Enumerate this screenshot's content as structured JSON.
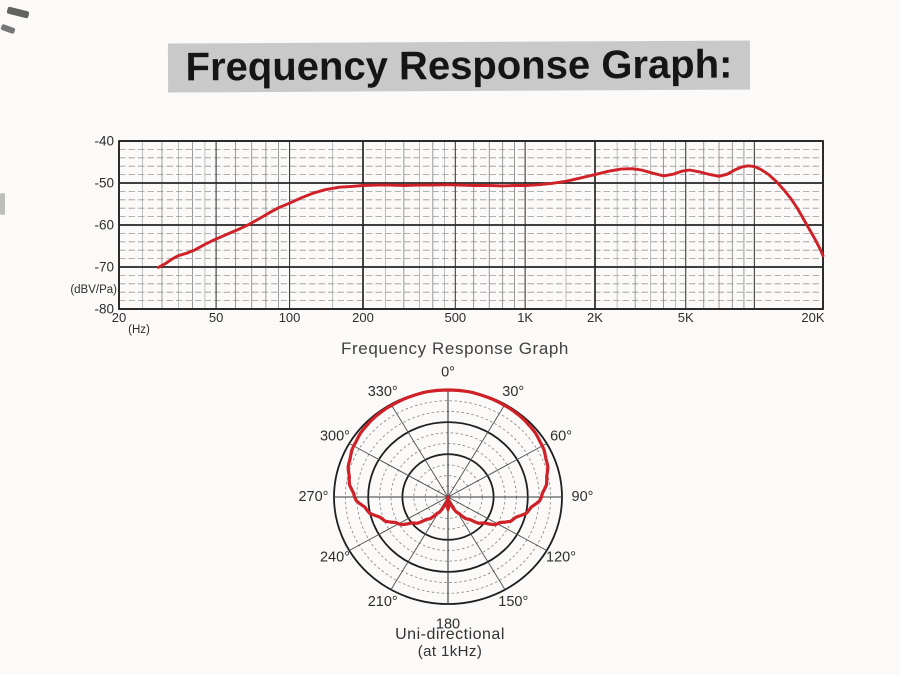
{
  "title": {
    "text": "Frequency Response Graph:"
  },
  "chart_data": [
    {
      "type": "line",
      "title": "Frequency Response Graph",
      "line_color": "#cf2127",
      "x_axis": {
        "scale": "log",
        "range": [
          20,
          20000
        ],
        "unit_label": "(Hz)",
        "ticks": [
          {
            "f": 20,
            "label": "20"
          },
          {
            "f": 50,
            "label": "50"
          },
          {
            "f": 100,
            "label": "100"
          },
          {
            "f": 200,
            "label": "200"
          },
          {
            "f": 500,
            "label": "500"
          },
          {
            "f": 1000,
            "label": "1K"
          },
          {
            "f": 2000,
            "label": "2K"
          },
          {
            "f": 5000,
            "label": "5K"
          },
          {
            "f": 20000,
            "label": "20K"
          }
        ],
        "grid": {
          "thick": [
            20,
            200,
            2000,
            20000
          ],
          "medium": [
            50,
            100,
            500,
            1000,
            5000,
            10000
          ],
          "thin": [
            30,
            40,
            60,
            70,
            80,
            90,
            300,
            400,
            600,
            700,
            800,
            900,
            3000,
            4000,
            6000,
            7000,
            8000,
            9000
          ],
          "hair": [
            25,
            35,
            45,
            150,
            250,
            350,
            450,
            1500,
            2500,
            3500,
            4500
          ]
        }
      },
      "y_axis": {
        "unit_label": "(dBV/Pa)",
        "range": [
          -80,
          -40
        ],
        "ticks": [
          -40,
          -50,
          -60,
          -70,
          -80
        ],
        "minor_step": 2
      },
      "points": [
        [
          29,
          -70.1
        ],
        [
          31,
          -69.2
        ],
        [
          33,
          -68.1
        ],
        [
          35,
          -67.3
        ],
        [
          38,
          -66.7
        ],
        [
          41,
          -65.9
        ],
        [
          44,
          -64.9
        ],
        [
          48,
          -63.8
        ],
        [
          52,
          -62.9
        ],
        [
          57,
          -61.9
        ],
        [
          62,
          -61.0
        ],
        [
          68,
          -59.9
        ],
        [
          75,
          -58.5
        ],
        [
          82,
          -57.2
        ],
        [
          90,
          -55.9
        ],
        [
          100,
          -54.8
        ],
        [
          112,
          -53.5
        ],
        [
          125,
          -52.4
        ],
        [
          140,
          -51.6
        ],
        [
          160,
          -51.0
        ],
        [
          180,
          -50.8
        ],
        [
          200,
          -50.6
        ],
        [
          230,
          -50.5
        ],
        [
          260,
          -50.5
        ],
        [
          300,
          -50.6
        ],
        [
          350,
          -50.5
        ],
        [
          400,
          -50.5
        ],
        [
          460,
          -50.4
        ],
        [
          520,
          -50.5
        ],
        [
          600,
          -50.6
        ],
        [
          700,
          -50.6
        ],
        [
          800,
          -50.7
        ],
        [
          900,
          -50.6
        ],
        [
          1000,
          -50.6
        ],
        [
          1150,
          -50.4
        ],
        [
          1300,
          -50.1
        ],
        [
          1500,
          -49.6
        ],
        [
          1700,
          -48.9
        ],
        [
          2000,
          -48.0
        ],
        [
          2300,
          -47.2
        ],
        [
          2600,
          -46.7
        ],
        [
          2900,
          -46.6
        ],
        [
          3200,
          -46.9
        ],
        [
          3600,
          -47.7
        ],
        [
          4000,
          -48.3
        ],
        [
          4400,
          -47.9
        ],
        [
          4800,
          -47.2
        ],
        [
          5200,
          -46.9
        ],
        [
          5800,
          -47.4
        ],
        [
          6400,
          -48.0
        ],
        [
          7000,
          -48.4
        ],
        [
          7600,
          -47.9
        ],
        [
          8200,
          -46.9
        ],
        [
          8800,
          -46.2
        ],
        [
          9400,
          -45.9
        ],
        [
          10000,
          -46.1
        ],
        [
          10700,
          -46.8
        ],
        [
          11500,
          -47.9
        ],
        [
          12500,
          -49.7
        ],
        [
          13500,
          -51.7
        ],
        [
          14500,
          -53.8
        ],
        [
          15500,
          -56.2
        ],
        [
          17000,
          -60.0
        ],
        [
          18500,
          -63.5
        ],
        [
          19500,
          -65.9
        ],
        [
          20000,
          -67.3
        ]
      ]
    },
    {
      "type": "polar",
      "caption_lines": [
        "Uni-directional",
        "(at 1kHz)"
      ],
      "line_color": "#cf2127",
      "rings": 10,
      "bold_rings": [
        4,
        7,
        10
      ],
      "angle_step_deg": 30,
      "angle_labels": [
        {
          "deg": 0,
          "label": "0°"
        },
        {
          "deg": 30,
          "label": "30°"
        },
        {
          "deg": 60,
          "label": "60°"
        },
        {
          "deg": 90,
          "label": "90°"
        },
        {
          "deg": 120,
          "label": "120°"
        },
        {
          "deg": 150,
          "label": "150°"
        },
        {
          "deg": 180,
          "label": "180"
        },
        {
          "deg": 210,
          "label": "210°"
        },
        {
          "deg": 240,
          "label": "240°"
        },
        {
          "deg": 270,
          "label": "270°"
        },
        {
          "deg": 300,
          "label": "300°"
        },
        {
          "deg": 330,
          "label": "330°"
        }
      ],
      "pattern": {
        "name": "uni-directional-cardioid",
        "angles_deg": [
          0,
          10,
          20,
          30,
          40,
          50,
          60,
          70,
          80,
          90,
          100,
          110,
          120,
          130,
          140,
          150,
          160,
          170,
          180
        ],
        "radii_norm": [
          1.0,
          1.0,
          0.995,
          0.99,
          0.985,
          0.975,
          0.955,
          0.925,
          0.88,
          0.82,
          0.72,
          0.61,
          0.5,
          0.38,
          0.27,
          0.17,
          0.085,
          0.03,
          0.0
        ],
        "rear_lobe_norm": 0.145
      }
    }
  ]
}
